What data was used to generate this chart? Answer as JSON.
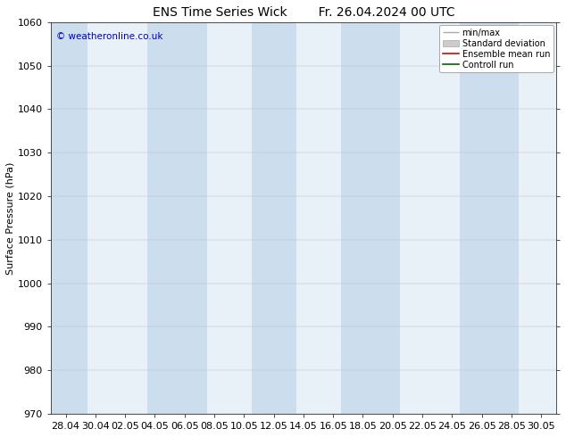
{
  "title_left": "ENS Time Series Wick",
  "title_right": "Fr. 26.04.2024 00 UTC",
  "ylabel": "Surface Pressure (hPa)",
  "ylim": [
    970,
    1060
  ],
  "yticks": [
    970,
    980,
    990,
    1000,
    1010,
    1020,
    1030,
    1040,
    1050,
    1060
  ],
  "xtick_labels": [
    "28.04",
    "30.04",
    "02.05",
    "04.05",
    "06.05",
    "08.05",
    "10.05",
    "12.05",
    "14.05",
    "16.05",
    "18.05",
    "20.05",
    "22.05",
    "24.05",
    "26.05",
    "28.05",
    "30.05"
  ],
  "copyright": "© weatheronline.co.uk",
  "copyright_color": "#0000bb",
  "band_color": "#ccdded",
  "plot_bg_color": "#e8f0f8",
  "background_color": "#ffffff",
  "legend_items": [
    "min/max",
    "Standard deviation",
    "Ensemble mean run",
    "Controll run"
  ],
  "legend_line_color": "#aaaaaa",
  "legend_std_color": "#cccccc",
  "legend_ensemble_color": "#dd0000",
  "legend_control_color": "#006600",
  "title_fontsize": 10,
  "axis_fontsize": 8,
  "figsize": [
    6.34,
    4.9
  ],
  "dpi": 100,
  "band_ranges_idx": [
    [
      -0.5,
      0.75
    ],
    [
      2.75,
      4.75
    ],
    [
      6.25,
      7.75
    ],
    [
      9.25,
      11.25
    ],
    [
      13.25,
      15.25
    ]
  ]
}
